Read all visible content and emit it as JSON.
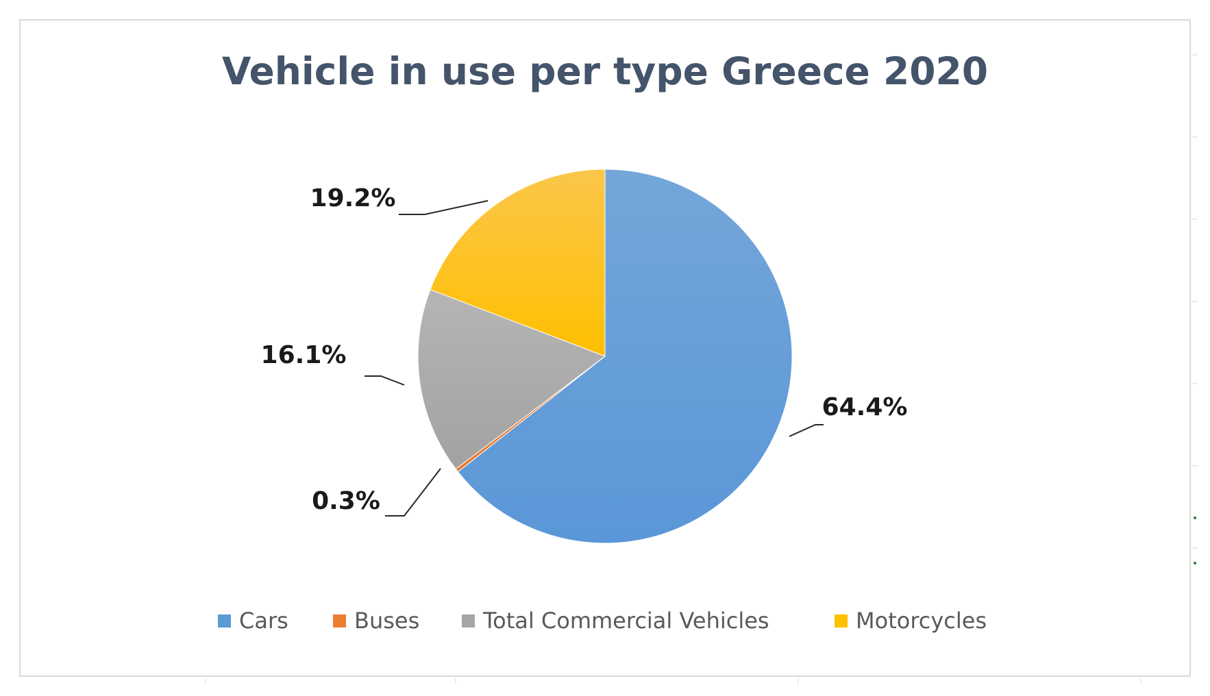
{
  "chart_data": {
    "type": "pie",
    "title": "Vehicle in use per type Greece 2020",
    "categories": [
      "Cars",
      "Buses",
      "Total Commercial Vehicles",
      "Motorcycles"
    ],
    "values": [
      64.4,
      0.3,
      16.1,
      19.2
    ],
    "labels": [
      "64.4%",
      "0.3%",
      "16.1%",
      "19.2%"
    ],
    "colors": [
      "#5b9bd5",
      "#ed7d31",
      "#a5a5a5",
      "#ffc000"
    ],
    "start_angle": "12 o'clock, clockwise",
    "legend_position": "bottom"
  }
}
